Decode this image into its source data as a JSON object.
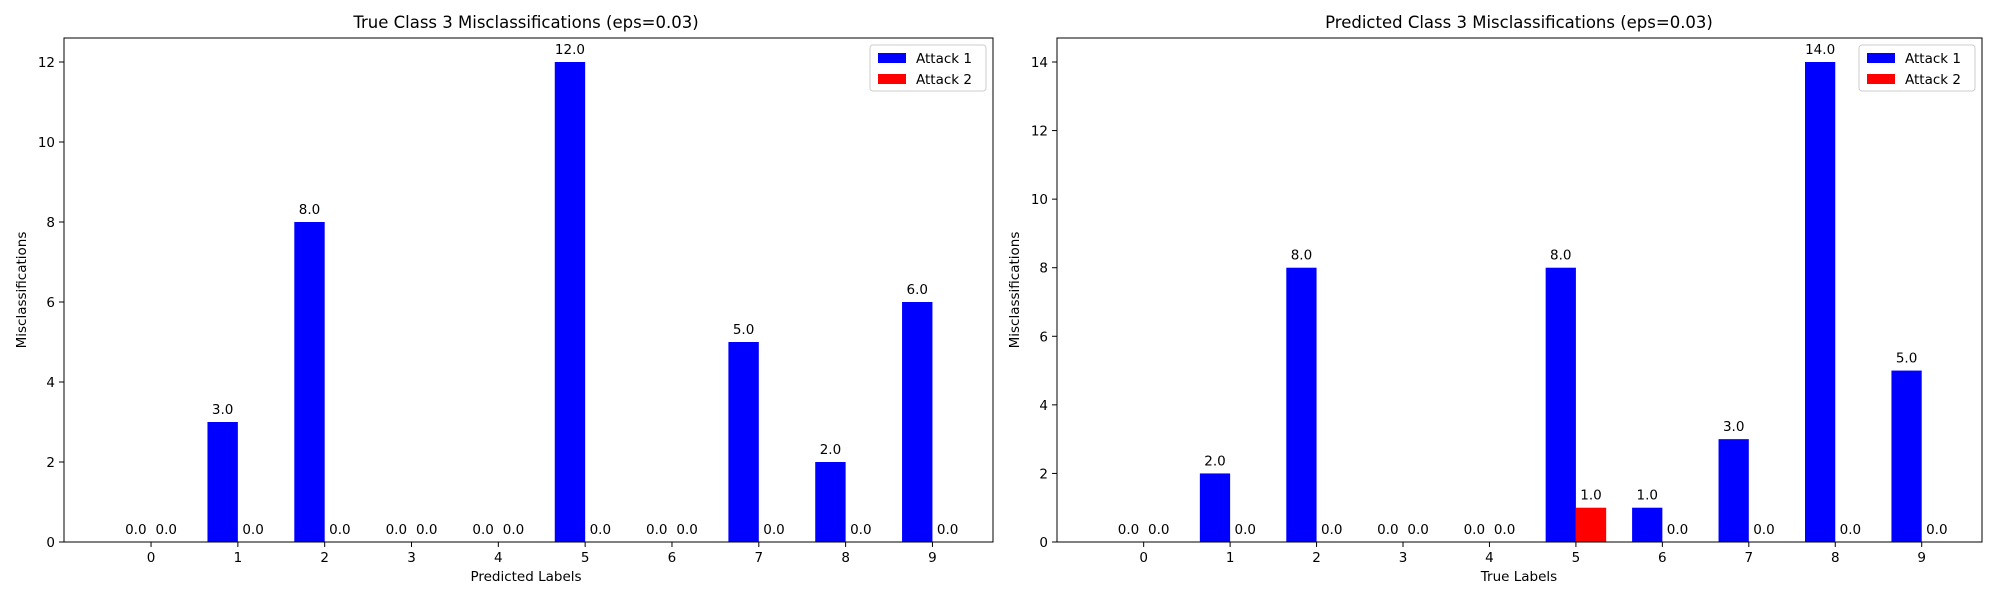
{
  "chart_data": [
    {
      "type": "bar",
      "title": "True Class 3 Misclassifications (eps=0.03)",
      "xlabel": "Predicted Labels",
      "ylabel": "Misclassifications",
      "categories": [
        "0",
        "1",
        "2",
        "3",
        "4",
        "5",
        "6",
        "7",
        "8",
        "9"
      ],
      "series": [
        {
          "name": "Attack 1",
          "color": "#0000ff",
          "values": [
            0,
            3,
            8,
            0,
            0,
            12,
            0,
            5,
            2,
            6
          ]
        },
        {
          "name": "Attack 2",
          "color": "#ff0000",
          "values": [
            0,
            0,
            0,
            0,
            0,
            0,
            0,
            0,
            0,
            0
          ]
        }
      ],
      "ylim": [
        0,
        12.6
      ],
      "yticks": [
        0,
        2,
        4,
        6,
        8,
        10,
        12
      ],
      "legend": "top-right",
      "grid": false
    },
    {
      "type": "bar",
      "title": "Predicted Class 3 Misclassifications (eps=0.03)",
      "xlabel": "True Labels",
      "ylabel": "Misclassifications",
      "categories": [
        "0",
        "1",
        "2",
        "3",
        "4",
        "5",
        "6",
        "7",
        "8",
        "9"
      ],
      "series": [
        {
          "name": "Attack 1",
          "color": "#0000ff",
          "values": [
            0,
            2,
            8,
            0,
            0,
            8,
            1,
            3,
            14,
            5
          ]
        },
        {
          "name": "Attack 2",
          "color": "#ff0000",
          "values": [
            0,
            0,
            0,
            0,
            0,
            1,
            0,
            0,
            0,
            0
          ]
        }
      ],
      "ylim": [
        0,
        14.7
      ],
      "yticks": [
        0,
        2,
        4,
        6,
        8,
        10,
        12,
        14
      ],
      "legend": "top-right",
      "grid": false
    }
  ]
}
